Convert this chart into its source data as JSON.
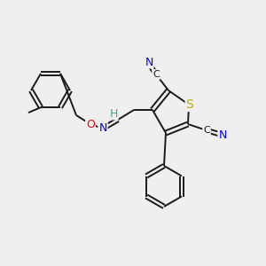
{
  "background_color": "#efefef",
  "bond_color": "#1a1a1a",
  "atom_colors": {
    "N": "#0000ee",
    "O": "#ee0000",
    "S": "#bbaa00",
    "C": "#1a1a1a",
    "H": "#3aaa99"
  },
  "figsize": [
    3.0,
    3.0
  ],
  "dpi": 100
}
